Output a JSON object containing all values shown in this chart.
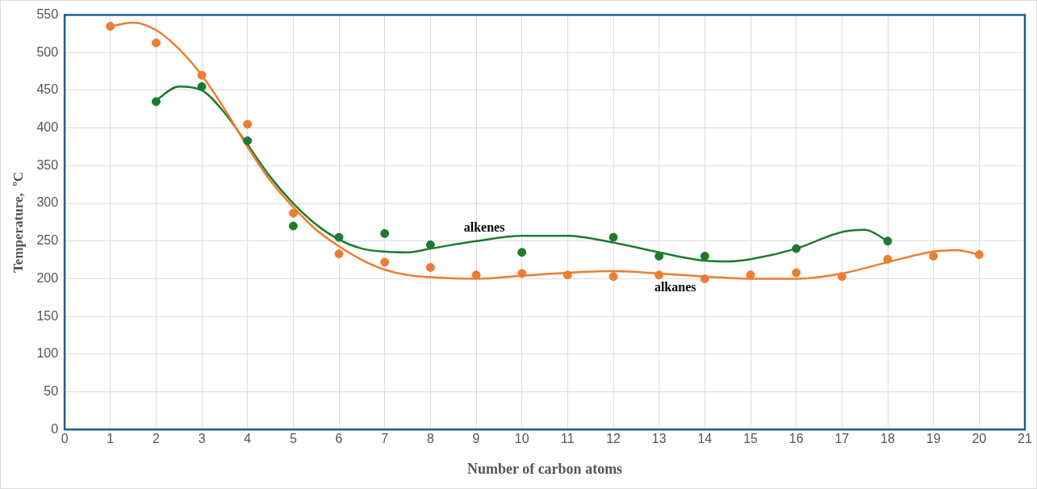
{
  "chart_data": {
    "type": "scatter",
    "xlabel": "Number of carbon atoms",
    "ylabel": "Temperature,  ºC",
    "xlim": [
      0,
      21
    ],
    "xticks": [
      0,
      1,
      2,
      3,
      4,
      5,
      6,
      7,
      8,
      9,
      10,
      11,
      12,
      13,
      14,
      15,
      16,
      17,
      18,
      19,
      20,
      21
    ],
    "ylim": [
      0,
      550
    ],
    "yticks": [
      0,
      50,
      100,
      150,
      200,
      250,
      300,
      350,
      400,
      450,
      500,
      550
    ],
    "grid": true,
    "legend": false,
    "series": [
      {
        "type": "scatter",
        "marker": "circle",
        "color": "#ed7d31",
        "x": [
          1,
          2,
          3,
          4,
          5,
          6,
          7,
          8,
          9,
          10,
          11,
          12,
          13,
          14,
          15,
          16,
          17,
          18,
          19,
          20
        ],
        "values": [
          535,
          513,
          470,
          405,
          287,
          233,
          222,
          215,
          205,
          207,
          205,
          203,
          205,
          200,
          205,
          208,
          203,
          226,
          230,
          232
        ]
      },
      {
        "type": "scatter",
        "marker": "circle",
        "color": "#1e7b2e",
        "x": [
          2,
          3,
          4,
          5,
          6,
          7,
          8,
          10,
          12,
          13,
          14,
          16,
          18
        ],
        "values": [
          435,
          455,
          383,
          270,
          255,
          260,
          245,
          235,
          255,
          230,
          230,
          240,
          250
        ]
      },
      {
        "type": "line",
        "marker": "none",
        "name": "alkanes",
        "color": "#ed7d31",
        "x": [
          1,
          1.5,
          2,
          2.5,
          3,
          3.5,
          4,
          4.5,
          5,
          5.5,
          6,
          6.5,
          7,
          7.5,
          8,
          9,
          10,
          11,
          12,
          13,
          14,
          15,
          16,
          17,
          18,
          19,
          19.5,
          20
        ],
        "values": [
          535,
          540,
          530,
          505,
          470,
          425,
          375,
          330,
          295,
          265,
          243,
          225,
          212,
          205,
          202,
          200,
          204,
          208,
          210,
          207,
          203,
          200,
          200,
          207,
          222,
          236,
          238,
          232
        ]
      },
      {
        "type": "line",
        "marker": "none",
        "name": "alkenes",
        "color": "#1e7b2e",
        "x": [
          2,
          2.5,
          3,
          3.5,
          4,
          4.5,
          5,
          5.5,
          6,
          6.5,
          7,
          7.5,
          8,
          9,
          10,
          11,
          12,
          13,
          14,
          14.5,
          15,
          16,
          17,
          17.5,
          18
        ],
        "values": [
          437,
          455,
          450,
          420,
          378,
          335,
          300,
          272,
          252,
          240,
          236,
          235,
          240,
          250,
          257,
          257,
          248,
          235,
          224,
          223,
          226,
          240,
          262,
          265,
          250
        ]
      }
    ]
  }
}
